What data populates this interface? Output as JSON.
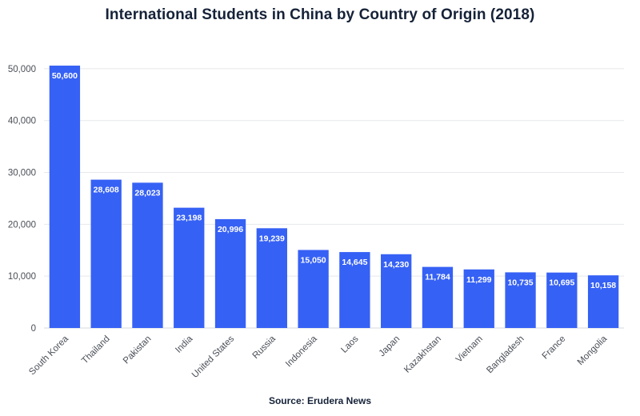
{
  "colors": {
    "bar": "#3661f5",
    "grid": "#e6e8ec",
    "text": "#152238"
  },
  "chart_data": {
    "type": "bar",
    "title": "International Students in China by Country of Origin (2018)",
    "source": "Source: Erudera News",
    "xlabel": "",
    "ylabel": "",
    "categories": [
      "South Korea",
      "Thailand",
      "Pakistan",
      "India",
      "United States",
      "Russia",
      "Indonesia",
      "Laos",
      "Japan",
      "Kazakhstan",
      "Vietnam",
      "Bangladesh",
      "France",
      "Mongolia"
    ],
    "values": [
      50600,
      28608,
      28023,
      23198,
      20996,
      19239,
      15050,
      14645,
      14230,
      11784,
      11299,
      10735,
      10695,
      10158
    ],
    "value_labels": [
      "50,600",
      "28,608",
      "28,023",
      "23,198",
      "20,996",
      "19,239",
      "15,050",
      "14,645",
      "14,230",
      "11,784",
      "11,299",
      "10,735",
      "10,695",
      "10,158"
    ],
    "ylim": [
      0,
      54000
    ],
    "yticks": [
      0,
      10000,
      20000,
      30000,
      40000,
      50000
    ],
    "ytick_labels": [
      "0",
      "10,000",
      "20,000",
      "30,000",
      "40,000",
      "50,000"
    ],
    "grid": true,
    "legend": "none"
  }
}
